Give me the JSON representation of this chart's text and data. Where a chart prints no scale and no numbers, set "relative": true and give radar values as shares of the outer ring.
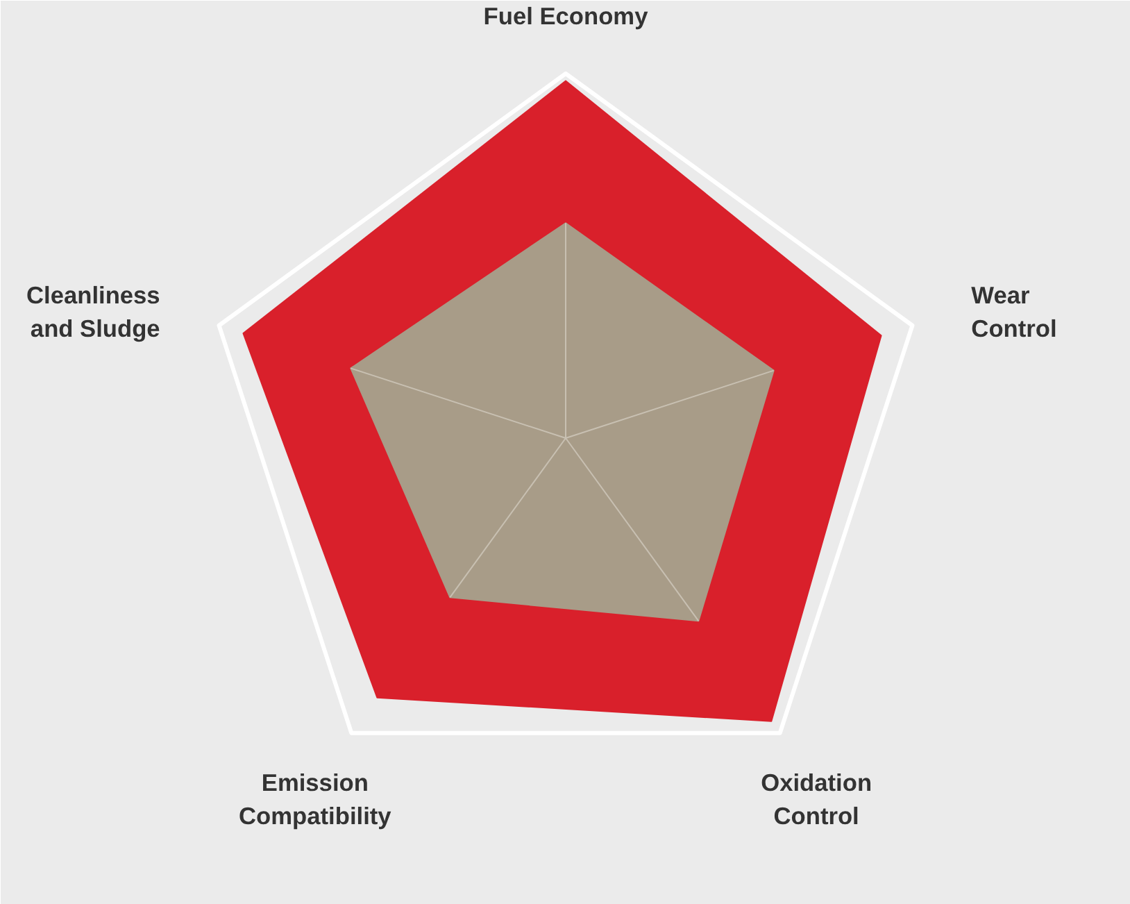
{
  "chart_data": {
    "type": "radar",
    "categories": [
      "Fuel Economy",
      "Wear\nControl",
      "Oxidation\nControl",
      "Emission\nCompatibility",
      "Cleanliness\nand Sludge"
    ],
    "relative": true,
    "grid": true,
    "series": [
      {
        "color": "#d9202b",
        "values": [
          0.98,
          0.91,
          0.96,
          0.88,
          0.93
        ]
      },
      {
        "color": "#a89c88",
        "values": [
          0.59,
          0.6,
          0.62,
          0.54,
          0.62
        ]
      }
    ]
  }
}
